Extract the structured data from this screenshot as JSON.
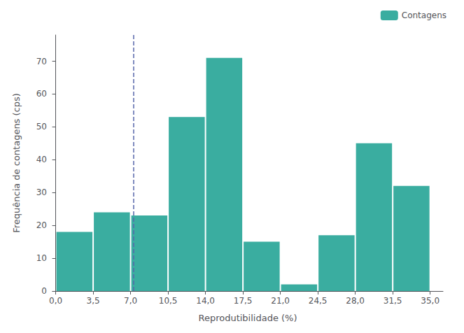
{
  "chart_data": {
    "type": "histogram",
    "xlabel": "Reprodutibilidade (%)",
    "ylabel": "Frequência de contagens (cps)",
    "bins": [
      0.0,
      3.5,
      7.0,
      10.5,
      14.0,
      17.5,
      21.0,
      24.5,
      28.0,
      31.5,
      35.0
    ],
    "values": [
      18,
      24,
      23,
      53,
      71,
      15,
      2,
      17,
      45,
      32
    ],
    "name": "Contagens",
    "color": "#3aada0",
    "legend": "upper right",
    "grid": false,
    "xlim": [
      -0.3,
      36.2
    ],
    "xticks": [
      {
        "value": 0.0,
        "label": "0,0"
      },
      {
        "value": 3.5,
        "label": "3,5"
      },
      {
        "value": 7.0,
        "label": "7,0"
      },
      {
        "value": 10.5,
        "label": "10,5"
      },
      {
        "value": 14.0,
        "label": "14,0"
      },
      {
        "value": 17.5,
        "label": "17,5"
      },
      {
        "value": 21.0,
        "label": "21,0"
      },
      {
        "value": 24.5,
        "label": "24,5"
      },
      {
        "value": 28.0,
        "label": "28,0"
      },
      {
        "value": 31.5,
        "label": "31,5"
      },
      {
        "value": 35.0,
        "label": "35,0"
      }
    ],
    "ylim": [
      0,
      78
    ],
    "yticks": [
      0,
      10,
      20,
      30,
      40,
      50,
      60,
      70
    ],
    "vline": {
      "x": 7.25,
      "color": "#5566aa",
      "line_style": "dashed"
    }
  }
}
